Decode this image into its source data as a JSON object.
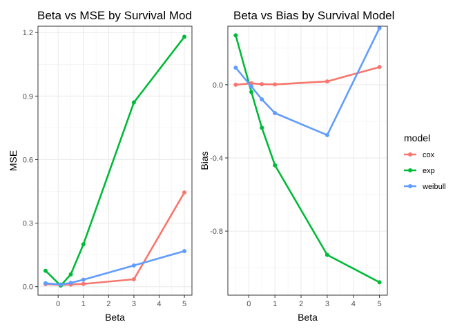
{
  "chart_data": [
    {
      "type": "line",
      "title": "Beta vs MSE by Survival Mod",
      "xlabel": "Beta",
      "ylabel": "MSE",
      "x": [
        -0.5,
        0.1,
        0.5,
        1,
        3,
        5
      ],
      "xlim": [
        -0.8,
        5.3
      ],
      "ylim": [
        -0.04,
        1.23
      ],
      "xticks": [
        0,
        1,
        2,
        3,
        4,
        5
      ],
      "xtick_labels": [
        "0",
        "1",
        "2",
        "3",
        "4",
        "5"
      ],
      "yticks": [
        0.0,
        0.3,
        0.6,
        0.9,
        1.2
      ],
      "ytick_labels": [
        "0.0",
        "0.3",
        "0.6",
        "0.9",
        "1.2"
      ],
      "grid": true,
      "series": [
        {
          "name": "cox",
          "color": "#F8766D",
          "values": [
            0.012,
            0.008,
            0.01,
            0.013,
            0.035,
            0.445
          ]
        },
        {
          "name": "exp",
          "color": "#00BA38",
          "values": [
            0.075,
            0.005,
            0.058,
            0.2,
            0.87,
            1.18
          ]
        },
        {
          "name": "weibull",
          "color": "#619CFF",
          "values": [
            0.016,
            0.01,
            0.018,
            0.033,
            0.1,
            0.168
          ]
        }
      ]
    },
    {
      "type": "line",
      "title": "Beta vs Bias by Survival Model",
      "xlabel": "Beta",
      "ylabel": "Bias",
      "x": [
        -0.5,
        0.1,
        0.5,
        1,
        3,
        5
      ],
      "xlim": [
        -0.8,
        5.3
      ],
      "ylim": [
        -1.15,
        0.32
      ],
      "xticks": [
        0,
        1,
        2,
        3,
        4,
        5
      ],
      "xtick_labels": [
        "0",
        "1",
        "2",
        "3",
        "4",
        "5"
      ],
      "yticks": [
        -0.8,
        -0.4,
        0.0
      ],
      "ytick_labels": [
        "-0.8",
        "-0.4",
        "0.0"
      ],
      "grid": true,
      "series": [
        {
          "name": "cox",
          "color": "#F8766D",
          "values": [
            0.0,
            0.008,
            0.003,
            0.002,
            0.018,
            0.097
          ]
        },
        {
          "name": "exp",
          "color": "#00BA38",
          "values": [
            0.27,
            -0.04,
            -0.235,
            -0.44,
            -0.93,
            -1.08
          ]
        },
        {
          "name": "weibull",
          "color": "#619CFF",
          "values": [
            0.093,
            -0.01,
            -0.08,
            -0.155,
            -0.275,
            0.31
          ]
        }
      ]
    }
  ],
  "legend": {
    "title": "model",
    "placement": "right",
    "items": [
      {
        "label": "cox",
        "color": "#F8766D"
      },
      {
        "label": "exp",
        "color": "#00BA38"
      },
      {
        "label": "weibull",
        "color": "#619CFF"
      }
    ]
  }
}
